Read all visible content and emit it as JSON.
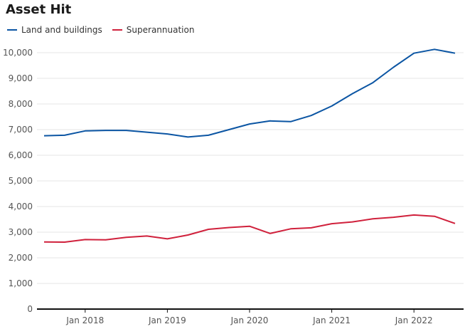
{
  "chart_data": {
    "type": "line",
    "title": "Asset Hit",
    "xlabel": "",
    "ylabel": "",
    "x": [
      "2017-07",
      "2017-10",
      "2018-01",
      "2018-04",
      "2018-07",
      "2018-10",
      "2019-01",
      "2019-04",
      "2019-07",
      "2019-10",
      "2020-01",
      "2020-04",
      "2020-07",
      "2020-10",
      "2021-01",
      "2021-04",
      "2021-07",
      "2021-10",
      "2022-01",
      "2022-04",
      "2022-07"
    ],
    "x_ticks": [
      "Jan 2018",
      "Jan 2019",
      "Jan 2020",
      "Jan 2021",
      "Jan 2022"
    ],
    "y_ticks": [
      "0",
      "1,000",
      "2,000",
      "3,000",
      "4,000",
      "5,000",
      "6,000",
      "7,000",
      "8,000",
      "9,000",
      "10,000"
    ],
    "ylim": [
      0,
      10000
    ],
    "grid": "horizontal",
    "legend_position": "top-left",
    "series": [
      {
        "name": "Land and buildings",
        "color": "#0b55a3",
        "values": [
          6760,
          6780,
          6950,
          6970,
          6970,
          6900,
          6830,
          6710,
          6780,
          7000,
          7220,
          7340,
          7310,
          7550,
          7920,
          8400,
          8830,
          9430,
          9980,
          10130,
          9980
        ]
      },
      {
        "name": "Superannuation",
        "color": "#d0213c",
        "values": [
          2620,
          2610,
          2710,
          2700,
          2800,
          2850,
          2740,
          2890,
          3110,
          3180,
          3230,
          2950,
          3130,
          3170,
          3330,
          3400,
          3520,
          3580,
          3670,
          3620,
          3340
        ]
      }
    ]
  }
}
